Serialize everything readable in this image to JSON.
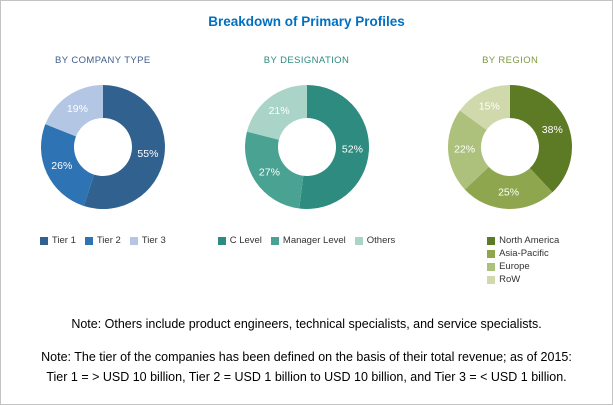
{
  "title": "Breakdown of Primary Profiles",
  "title_color": "#0070c0",
  "chart_data": [
    {
      "type": "pie",
      "variant": "donut",
      "heading": "BY COMPANY TYPE",
      "heading_color": "#3f5e8c",
      "categories": [
        "Tier 1",
        "Tier 2",
        "Tier 3"
      ],
      "values": [
        55,
        26,
        19
      ],
      "value_labels": [
        "55%",
        "26%",
        "19%"
      ],
      "colors": [
        "#31618f",
        "#2e74b5",
        "#b3c6e4"
      ],
      "legend_position": "bottom-horizontal"
    },
    {
      "type": "pie",
      "variant": "donut",
      "heading": "BY DESIGNATION",
      "heading_color": "#2e8b7f",
      "categories": [
        "C Level",
        "Manager Level",
        "Others"
      ],
      "values": [
        52,
        27,
        21
      ],
      "value_labels": [
        "52%",
        "27%",
        "21%"
      ],
      "colors": [
        "#2e8b7f",
        "#4aa392",
        "#a9d4c7"
      ],
      "legend_position": "bottom-horizontal"
    },
    {
      "type": "pie",
      "variant": "donut",
      "heading": "BY REGION",
      "heading_color": "#7d9a3f",
      "categories": [
        "North America",
        "Asia-Pacific",
        "Europe",
        "RoW"
      ],
      "values": [
        38,
        25,
        22,
        15
      ],
      "value_labels": [
        "38%",
        "25%",
        "22%",
        "15%"
      ],
      "colors": [
        "#5d7b24",
        "#8ea74f",
        "#adc07c",
        "#cfd9ab"
      ],
      "legend_position": "bottom-vertical"
    }
  ],
  "notes": {
    "note1": "Note: Others include product engineers, technical specialists, and service specialists.",
    "note2_line1": "Note: The tier of the companies has been defined on the basis of their total revenue; as of 2015:",
    "note2_line2": "Tier 1 = > USD 10 billion, Tier 2 = USD 1 billion to USD 10 billion, and Tier 3 = < USD 1 billion."
  }
}
